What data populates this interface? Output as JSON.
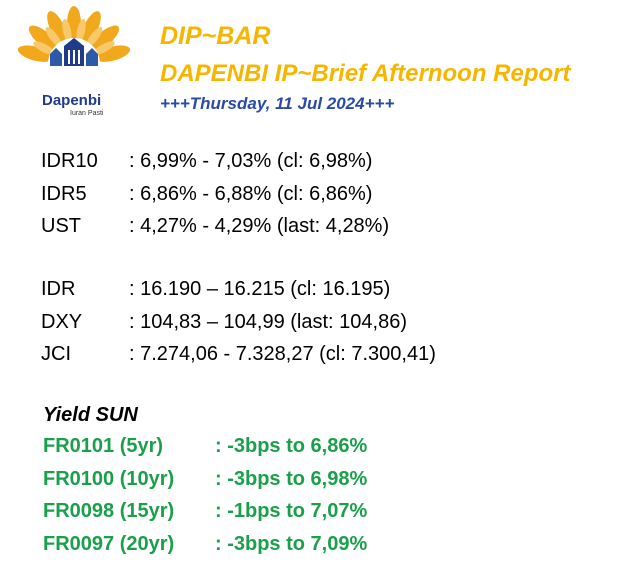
{
  "header": {
    "logo_name": "Dapenbi",
    "logo_tagline": "Iuran Pasti",
    "title": "DIP~BAR",
    "subtitle": "DAPENBI IP~Brief Afternoon Report",
    "date": "+++Thursday, 11 Jul 2024+++"
  },
  "yields": [
    {
      "label": "IDR10",
      "value": ": 6,99% - 7,03% (cl: 6,98%)"
    },
    {
      "label": "IDR5",
      "value": ": 6,86% - 6,88% (cl: 6,86%)"
    },
    {
      "label": "UST",
      "value": ": 4,27% - 4,29% (last: 4,28%)"
    }
  ],
  "markets": [
    {
      "label": "IDR",
      "value": ": 16.190 – 16.215 (cl: 16.195)"
    },
    {
      "label": "DXY",
      "value": ": 104,83 – 104,99 (last: 104,86)"
    },
    {
      "label": "JCI",
      "value": ": 7.274,06 - 7.328,27 (cl: 7.300,41)"
    }
  ],
  "yield_sun": {
    "title": "Yield SUN",
    "items": [
      {
        "label": "FR0101 (5yr)",
        "value": ": -3bps to 6,86%"
      },
      {
        "label": "FR0100 (10yr)",
        "value": ": -3bps to 6,98%"
      },
      {
        "label": "FR0098 (15yr)",
        "value": ": -1bps to 7,07%"
      },
      {
        "label": "FR0097 (20yr)",
        "value": ": -3bps to 7,09%"
      }
    ]
  },
  "colors": {
    "title": "#f7b500",
    "date": "#2a4aa8",
    "green": "#1aa04b",
    "logo_blue": "#1f3b8a"
  }
}
